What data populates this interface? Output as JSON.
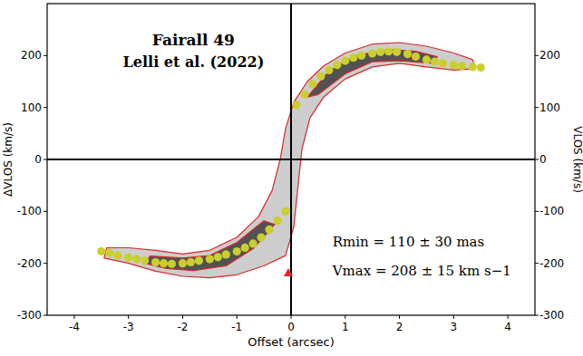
{
  "chart_data": {
    "type": "scatter",
    "title": "Fairall 49",
    "subtitle": "Lelli et al. (2022)",
    "x_label": "Offset (arcsec)",
    "y_label": "ΔVLOS (km/s)",
    "y2_label": "VLOS (km/s)",
    "annotations": [
      "Rmin = 110 ± 30 mas",
      "Vmax = 208 ± 15 km s−1"
    ],
    "xlim": [
      -4.5,
      4.5
    ],
    "xticks": [
      -4,
      -3,
      -2,
      -1,
      0,
      1,
      2,
      3,
      4
    ],
    "ylim": [
      -300,
      300
    ],
    "yticks": [
      -300,
      -200,
      -100,
      0,
      100,
      200
    ],
    "y2lim": [
      -300,
      300
    ],
    "y2ticks": [
      -300,
      -200,
      -100,
      0,
      100,
      200
    ],
    "hlines": [
      0
    ],
    "vlines": [
      0
    ],
    "grid": false,
    "series": [
      {
        "type": "contour",
        "color": "#d42a2a",
        "x": [
          -0.1,
          0.05,
          0.3,
          0.6,
          1.0,
          1.5,
          2.0,
          2.5,
          3.0,
          3.35,
          3.4,
          3.0,
          2.5,
          2.0,
          1.5,
          1.0,
          0.6,
          0.35,
          0.2,
          0.1,
          0.05,
          -0.1,
          -0.5,
          -1.0,
          -1.5,
          -2.0,
          -2.5,
          -3.0,
          -3.45,
          -3.4,
          -3.0,
          -2.5,
          -2.0,
          -1.5,
          -1.0,
          -0.6,
          -0.35,
          -0.2,
          -0.15
        ],
        "values": [
          60,
          110,
          150,
          180,
          205,
          222,
          225,
          218,
          205,
          192,
          175,
          172,
          178,
          185,
          178,
          155,
          120,
          80,
          20,
          -80,
          -130,
          -185,
          -205,
          -222,
          -228,
          -225,
          -215,
          -200,
          -190,
          -170,
          -170,
          -175,
          -182,
          -175,
          -150,
          -110,
          -60,
          0,
          30
        ]
      },
      {
        "type": "contour",
        "color": "#d42a2a",
        "x": [
          0.3,
          0.7,
          1.2,
          1.8,
          2.3,
          2.7,
          2.6,
          2.0,
          1.5,
          1.0,
          0.5,
          null,
          -0.3,
          -0.7,
          -1.2,
          -1.8,
          -2.3,
          -2.7,
          -2.6,
          -2.0,
          -1.5,
          -1.0,
          -0.5
        ],
        "values": [
          120,
          170,
          200,
          212,
          208,
          198,
          185,
          190,
          188,
          165,
          125,
          null,
          -125,
          -172,
          -205,
          -214,
          -210,
          -200,
          -186,
          -190,
          -185,
          -160,
          -118
        ]
      },
      {
        "type": "scatter",
        "marker": "circle",
        "color": "#c9cf2e",
        "x": [
          0.1,
          0.25,
          0.4,
          0.55,
          0.7,
          0.85,
          1.0,
          1.15,
          1.3,
          1.5,
          1.65,
          1.8,
          1.95,
          2.15,
          2.3,
          2.5,
          2.65,
          2.8,
          3.0,
          3.15,
          3.35,
          3.5,
          -0.1,
          -0.25,
          -0.4,
          -0.55,
          -0.7,
          -0.85,
          -1.0,
          -1.2,
          -1.35,
          -1.5,
          -1.7,
          -1.85,
          -2.0,
          -2.2,
          -2.35,
          -2.5,
          -2.7,
          -2.85,
          -3.0,
          -3.2,
          -3.35,
          -3.5
        ],
        "values": [
          105,
          125,
          145,
          160,
          172,
          182,
          190,
          196,
          200,
          204,
          207,
          208,
          207,
          203,
          198,
          192,
          188,
          185,
          182,
          180,
          178,
          177,
          -100,
          -118,
          -135,
          -150,
          -162,
          -170,
          -177,
          -183,
          -188,
          -192,
          -195,
          -198,
          -200,
          -201,
          -200,
          -198,
          -195,
          -192,
          -189,
          -185,
          -180,
          -177
        ]
      },
      {
        "type": "scatter",
        "marker": "triangle",
        "color": "#e8202a",
        "x": [
          -0.05
        ],
        "values": [
          -218
        ]
      }
    ]
  }
}
